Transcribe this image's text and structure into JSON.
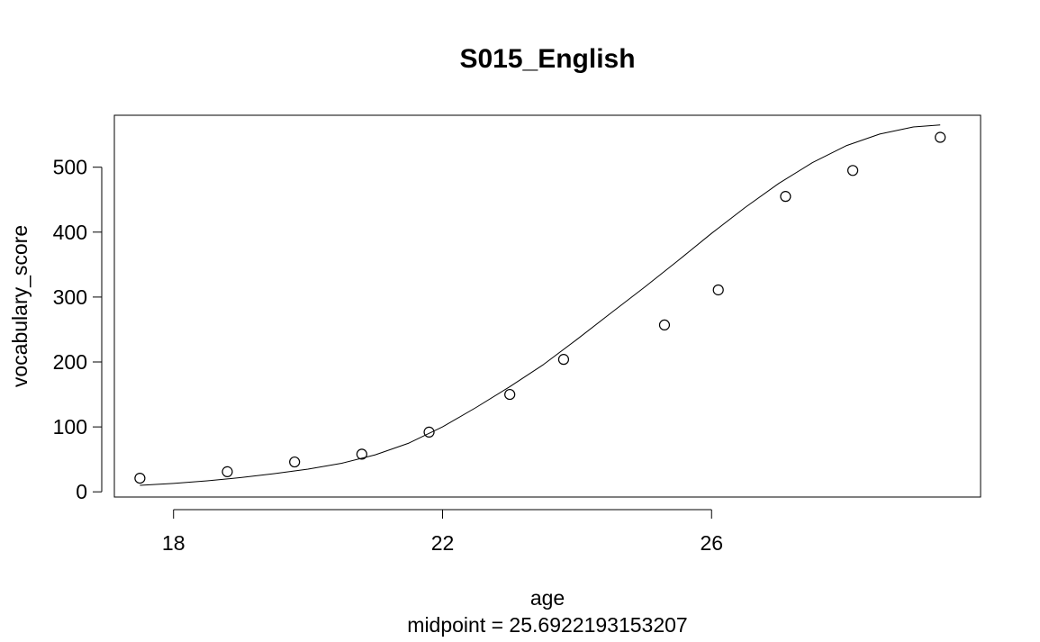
{
  "chart_data": {
    "type": "scatter",
    "title": "S015_English",
    "xlabel": "age",
    "ylabel": "vocabulary_score",
    "subtitle": "midpoint = 25.6922193153207",
    "xlim": [
      17.12,
      30.0
    ],
    "ylim": [
      -8.0,
      580.0
    ],
    "xticks": [
      18,
      22,
      26
    ],
    "yticks": [
      0,
      100,
      200,
      300,
      400,
      500
    ],
    "grid": false,
    "legend": "none",
    "points": {
      "x": [
        17.5,
        18.8,
        19.8,
        20.8,
        21.8,
        23.0,
        23.8,
        25.3,
        26.1,
        27.1,
        28.1,
        29.4
      ],
      "y": [
        21,
        31,
        46,
        58,
        92,
        150,
        204,
        257,
        311,
        455,
        495,
        546
      ]
    },
    "fit_curve": {
      "x": [
        17.5,
        18.0,
        18.5,
        19.0,
        19.5,
        20.0,
        20.5,
        21.0,
        21.5,
        22.0,
        22.5,
        23.0,
        23.5,
        24.0,
        24.5,
        25.0,
        25.5,
        26.0,
        26.5,
        27.0,
        27.5,
        28.0,
        28.5,
        29.0,
        29.4
      ],
      "y": [
        10,
        13,
        17,
        22,
        28,
        35,
        44,
        57,
        75,
        100,
        130,
        162,
        196,
        235,
        275,
        315,
        356,
        398,
        438,
        475,
        507,
        533,
        551,
        562,
        565
      ]
    },
    "colors": {
      "axis": "#000000",
      "points": "#000000",
      "curve": "#000000",
      "background": "#ffffff"
    }
  }
}
